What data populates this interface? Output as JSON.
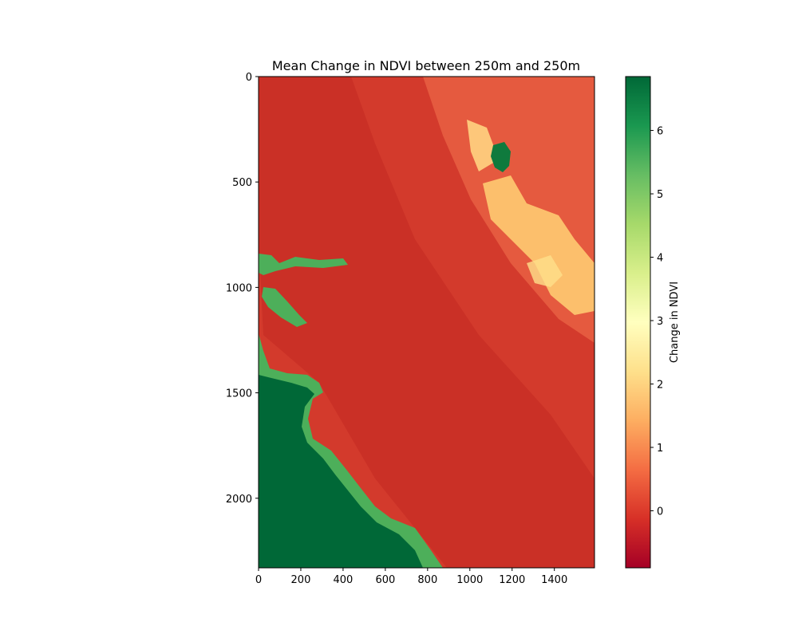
{
  "chart_data": {
    "type": "heatmap",
    "title": "Mean Change in NDVI between 250m and 250m",
    "xlabel": "",
    "ylabel": "",
    "xlim": [
      0,
      1590
    ],
    "ylim": [
      2330,
      0
    ],
    "x_ticks": [
      0,
      200,
      400,
      600,
      800,
      1000,
      1200,
      1400
    ],
    "y_ticks": [
      0,
      500,
      1000,
      1500,
      2000
    ],
    "colormap": "RdYlGn",
    "colorbar": {
      "label": "Change in NDVI",
      "range": [
        -0.9,
        6.85
      ],
      "ticks": [
        0,
        1,
        2,
        3,
        4,
        5,
        6
      ]
    },
    "regions": [
      {
        "name": "background",
        "value": -0.3
      },
      {
        "name": "inland-darker",
        "value": -0.6
      },
      {
        "name": "northeast-plateau",
        "value": 0.4
      },
      {
        "name": "highland-patches",
        "value": 1.6
      },
      {
        "name": "coastal-shelf",
        "value": 5.2
      },
      {
        "name": "ocean",
        "value": 6.8
      },
      {
        "name": "lake-north",
        "value": 6.6
      }
    ],
    "grid": false
  },
  "colors": {
    "ocean": "#006837",
    "shelf": "#4daf5a",
    "land": "#d73027",
    "land_dark": "#c4281f",
    "plateau": "#e8573a",
    "highland": "#fdbf6f"
  }
}
